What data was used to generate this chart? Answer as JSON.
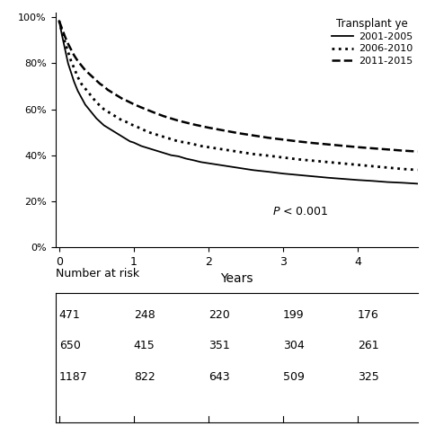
{
  "xlabel": "Years",
  "xlim": [
    -0.05,
    4.8
  ],
  "ylim": [
    0.0,
    1.02
  ],
  "yticks": [
    0.0,
    0.2,
    0.4,
    0.6,
    0.8,
    1.0
  ],
  "ytick_labels": [
    "0%",
    "20%",
    "40%",
    "60%",
    "80%",
    "100%"
  ],
  "xticks": [
    0,
    1,
    2,
    3,
    4
  ],
  "legend_title": "Transplant ye",
  "legend_entries": [
    "2001-2005",
    "2006-2010",
    "2011-2015"
  ],
  "pvalue_text": "P < 0.001",
  "background_color": "#ffffff",
  "line_color": "#000000",
  "curve1_x": [
    0.0,
    0.04,
    0.08,
    0.12,
    0.16,
    0.2,
    0.25,
    0.3,
    0.35,
    0.4,
    0.45,
    0.5,
    0.55,
    0.6,
    0.65,
    0.7,
    0.75,
    0.8,
    0.85,
    0.9,
    0.95,
    1.0,
    1.1,
    1.2,
    1.3,
    1.4,
    1.5,
    1.6,
    1.7,
    1.8,
    1.9,
    2.0,
    2.2,
    2.4,
    2.6,
    2.8,
    3.0,
    3.2,
    3.4,
    3.6,
    3.8,
    4.0,
    4.2,
    4.4,
    4.6,
    4.8
  ],
  "curve1_y": [
    0.985,
    0.92,
    0.86,
    0.8,
    0.76,
    0.72,
    0.68,
    0.65,
    0.62,
    0.6,
    0.58,
    0.56,
    0.545,
    0.53,
    0.52,
    0.51,
    0.5,
    0.49,
    0.48,
    0.47,
    0.46,
    0.455,
    0.44,
    0.43,
    0.42,
    0.41,
    0.4,
    0.395,
    0.385,
    0.378,
    0.37,
    0.365,
    0.355,
    0.345,
    0.335,
    0.328,
    0.32,
    0.314,
    0.308,
    0.302,
    0.297,
    0.292,
    0.288,
    0.283,
    0.28,
    0.276
  ],
  "curve2_x": [
    0.0,
    0.04,
    0.08,
    0.12,
    0.16,
    0.2,
    0.25,
    0.3,
    0.35,
    0.4,
    0.45,
    0.5,
    0.55,
    0.6,
    0.65,
    0.7,
    0.75,
    0.8,
    0.85,
    0.9,
    0.95,
    1.0,
    1.1,
    1.2,
    1.3,
    1.4,
    1.5,
    1.6,
    1.7,
    1.8,
    1.9,
    2.0,
    2.2,
    2.4,
    2.6,
    2.8,
    3.0,
    3.2,
    3.4,
    3.6,
    3.8,
    4.0,
    4.2,
    4.4,
    4.6,
    4.8
  ],
  "curve2_y": [
    0.985,
    0.935,
    0.89,
    0.85,
    0.81,
    0.78,
    0.74,
    0.71,
    0.69,
    0.67,
    0.65,
    0.63,
    0.615,
    0.6,
    0.59,
    0.58,
    0.57,
    0.56,
    0.55,
    0.545,
    0.535,
    0.53,
    0.515,
    0.5,
    0.49,
    0.48,
    0.47,
    0.46,
    0.455,
    0.448,
    0.44,
    0.435,
    0.425,
    0.415,
    0.405,
    0.398,
    0.39,
    0.382,
    0.376,
    0.37,
    0.364,
    0.358,
    0.352,
    0.346,
    0.34,
    0.336
  ],
  "curve3_x": [
    0.0,
    0.04,
    0.08,
    0.12,
    0.16,
    0.2,
    0.25,
    0.3,
    0.35,
    0.4,
    0.45,
    0.5,
    0.55,
    0.6,
    0.65,
    0.7,
    0.75,
    0.8,
    0.85,
    0.9,
    0.95,
    1.0,
    1.1,
    1.2,
    1.3,
    1.4,
    1.5,
    1.6,
    1.7,
    1.8,
    1.9,
    2.0,
    2.2,
    2.4,
    2.6,
    2.8,
    3.0,
    3.2,
    3.4,
    3.6,
    3.8,
    4.0,
    4.2,
    4.4,
    4.6,
    4.8
  ],
  "curve3_y": [
    0.985,
    0.95,
    0.915,
    0.885,
    0.86,
    0.835,
    0.81,
    0.79,
    0.77,
    0.755,
    0.74,
    0.725,
    0.71,
    0.7,
    0.685,
    0.675,
    0.665,
    0.655,
    0.645,
    0.638,
    0.63,
    0.622,
    0.608,
    0.595,
    0.582,
    0.57,
    0.56,
    0.55,
    0.542,
    0.534,
    0.527,
    0.52,
    0.508,
    0.496,
    0.486,
    0.476,
    0.468,
    0.46,
    0.453,
    0.447,
    0.441,
    0.435,
    0.43,
    0.425,
    0.42,
    0.416
  ],
  "nar_rows": [
    [
      471,
      248,
      220,
      199,
      176
    ],
    [
      650,
      415,
      351,
      304,
      261
    ],
    [
      1187,
      822,
      643,
      509,
      325
    ]
  ],
  "nar_header": "Number at risk",
  "nar_time": [
    0,
    1,
    2,
    3,
    4
  ]
}
